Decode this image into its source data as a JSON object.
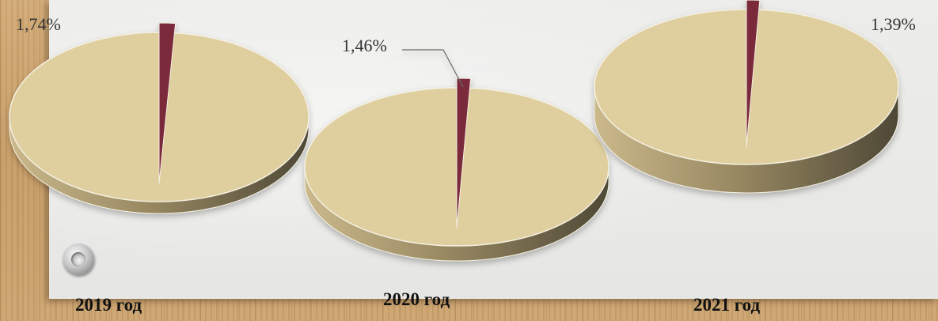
{
  "chart_data": [
    {
      "type": "pie",
      "title": "2019 год",
      "slices": [
        {
          "value": 1.74,
          "label": "1,74%",
          "color": "#7a2a3a"
        },
        {
          "value": 98.26,
          "label": "",
          "color": "#dfce9e"
        }
      ]
    },
    {
      "type": "pie",
      "title": "2020 год",
      "slices": [
        {
          "value": 1.46,
          "label": "1,46%",
          "color": "#7a2a3a"
        },
        {
          "value": 98.54,
          "label": "",
          "color": "#dfce9e"
        }
      ]
    },
    {
      "type": "pie",
      "title": "2021 год",
      "slices": [
        {
          "value": 1.39,
          "label": "1,39%",
          "color": "#7a2a3a"
        },
        {
          "value": 98.61,
          "label": "",
          "color": "#dfce9e"
        }
      ]
    }
  ],
  "colors": {
    "side_light": "#cbb98c",
    "side_dark": "#5c553f",
    "leader_line": "#6b6b6b"
  }
}
